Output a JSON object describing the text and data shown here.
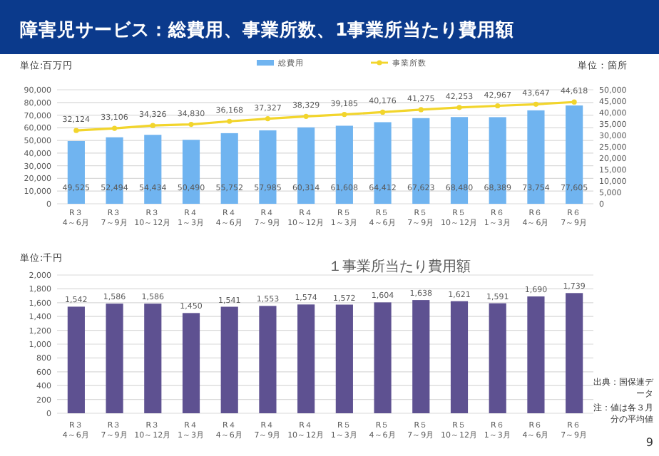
{
  "chart_data": [
    {
      "type": "bar",
      "title": "障害児サービス：総費用、事業所数、1事業所当たり費用額",
      "ylabel": "単位:百万円",
      "y2label": "単位：箇所",
      "categories": [
        "R３\n4～6月",
        "R３\n7～9月",
        "R３\n10～12月",
        "R４\n1～3月",
        "R４\n4～6月",
        "R４\n7～9月",
        "R４\n10～12月",
        "R５\n1～3月",
        "R５\n4～6月",
        "R５\n7～9月",
        "R５\n10～12月",
        "R６\n1～3月",
        "R６\n4～6月",
        "R６\n7～9月"
      ],
      "series": [
        {
          "name": "総費用",
          "color": "#70b4f0",
          "values": [
            49525,
            52494,
            54434,
            50490,
            55752,
            57985,
            60314,
            61608,
            64412,
            67623,
            68480,
            68389,
            73754,
            77605
          ],
          "value_labels": [
            "49,525",
            "52,494",
            "54,434",
            "50,490",
            "55,752",
            "57,985",
            "60,314",
            "61,608",
            "64,412",
            "67,623",
            "68,480",
            "68,389",
            "73,754",
            "77,605"
          ]
        },
        {
          "name": "事業所数",
          "type": "line",
          "axis": "y2",
          "color": "#f2d52c",
          "marker": "circle",
          "values": [
            32124,
            33106,
            34326,
            34830,
            36168,
            37327,
            38329,
            39185,
            40176,
            41275,
            42253,
            42967,
            43647,
            44618
          ],
          "value_labels": [
            "32,124",
            "33,106",
            "34,326",
            "34,830",
            "36,168",
            "37,327",
            "38,329",
            "39,185",
            "40,176",
            "41,275",
            "42,253",
            "42,967",
            "43,647",
            "44,618"
          ]
        }
      ],
      "ylim": [
        0,
        90000
      ],
      "yticks": [
        0,
        {
          "value": 10000,
          "label": "10,000"
        },
        {
          "value": 20000,
          "label": "20,000"
        },
        {
          "value": 30000,
          "label": "30,000"
        },
        {
          "value": 40000,
          "label": "40,000"
        },
        {
          "value": 50000,
          "label": "50,000"
        },
        {
          "value": 60000,
          "label": "60,000"
        },
        {
          "value": 70000,
          "label": "70,000"
        },
        {
          "value": 80000,
          "label": "80,000"
        },
        {
          "value": 90000,
          "label": "90,000"
        }
      ],
      "y2lim": [
        0,
        50000
      ],
      "y2ticks": [
        0,
        {
          "value": 5000,
          "label": "5,000"
        },
        {
          "value": 10000,
          "label": "10,000"
        },
        {
          "value": 15000,
          "label": "15,000"
        },
        {
          "value": 20000,
          "label": "20,000"
        },
        {
          "value": 25000,
          "label": "25,000"
        },
        {
          "value": 30000,
          "label": "30,000"
        },
        {
          "value": 35000,
          "label": "35,000"
        },
        {
          "value": 40000,
          "label": "40,000"
        },
        {
          "value": 45000,
          "label": "45,000"
        },
        {
          "value": 50000,
          "label": "50,000"
        }
      ],
      "grid": "y",
      "legend": "top"
    },
    {
      "type": "bar",
      "title": "１事業所当たり費用額",
      "ylabel": "単位:千円",
      "categories": [
        "R３\n4～6月",
        "R３\n7～9月",
        "R３\n10～12月",
        "R４\n1～3月",
        "R４\n4～6月",
        "R４\n7～9月",
        "R４\n10～12月",
        "R５\n1～3月",
        "R５\n4～6月",
        "R５\n7～9月",
        "R５\n10～12月",
        "R６\n1～3月",
        "R６\n4～6月",
        "R６\n7～9月"
      ],
      "series": [
        {
          "color": "#5e5191",
          "values": [
            1542,
            1586,
            1586,
            1450,
            1541,
            1553,
            1574,
            1572,
            1604,
            1638,
            1621,
            1591,
            1690,
            1739
          ],
          "value_labels": [
            "1,542",
            "1,586",
            "1,586",
            "1,450",
            "1,541",
            "1,553",
            "1,574",
            "1,572",
            "1,604",
            "1,638",
            "1,621",
            "1,591",
            "1,690",
            "1,739"
          ]
        }
      ],
      "ylim": [
        0,
        2000
      ],
      "yticks": [
        0,
        200,
        400,
        600,
        800,
        {
          "value": 1000,
          "label": "1,000"
        },
        {
          "value": 1200,
          "label": "1,200"
        },
        {
          "value": 1400,
          "label": "1,400"
        },
        {
          "value": 1600,
          "label": "1,600"
        },
        {
          "value": 1800,
          "label": "1,800"
        },
        {
          "value": 2000,
          "label": "2,000"
        }
      ],
      "grid": "y",
      "annotations": [
        "出典：国保連データ",
        "注：値は各３月分の平均値",
        "9"
      ]
    }
  ]
}
